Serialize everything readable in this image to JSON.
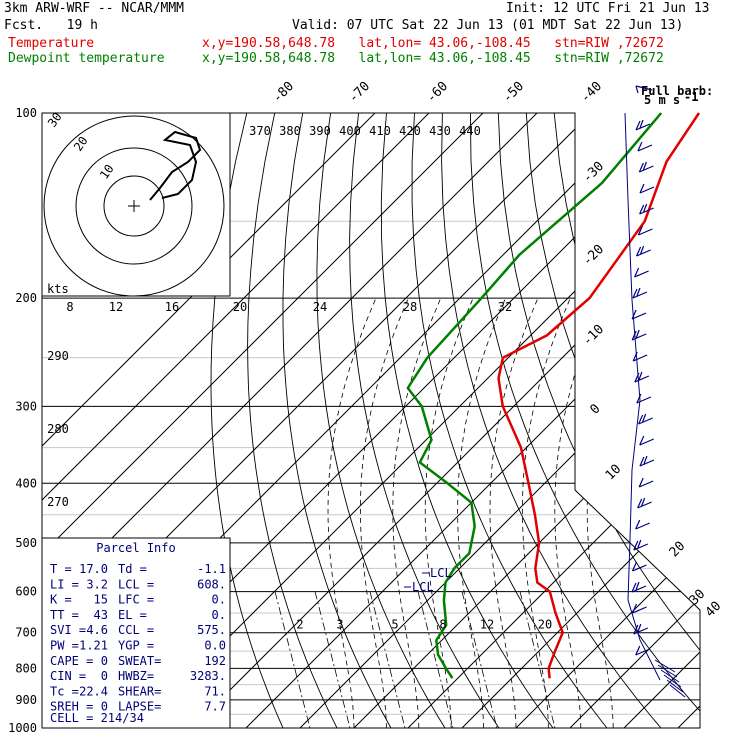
{
  "header": {
    "model": "3km ARW-WRF -- NCAR/MMM",
    "init": "Init: 12 UTC Fri 21 Jun 13",
    "fcst": "Fcst.   19 h",
    "valid": "Valid: 07 UTC Sat 22 Jun 13 (01 MDT Sat 22 Jun 13)",
    "temp_label": "Temperature",
    "dewp_label": "Dewpoint temperature",
    "temp_loc": "x,y=190.58,648.78   lat,lon= 43.06,-108.45   stn=RIW ,72672",
    "dewp_loc": "x,y=190.58,648.78   lat,lon= 43.06,-108.45   stn=RIW ,72672",
    "full_barb": "Full barb:",
    "full_barb_units": "5 m s",
    "full_barb_exp": "-1"
  },
  "colors": {
    "temperature": "#e00000",
    "dewpoint": "#008000",
    "info": "#00007a",
    "barbs": "#000080"
  },
  "chart_data": {
    "type": "skew-t",
    "pressure_levels": [
      100,
      200,
      300,
      400,
      500,
      600,
      700,
      800,
      900,
      1000
    ],
    "pressure_labels": [
      "100",
      "200",
      "300",
      "400",
      "500",
      "600",
      "700",
      "800",
      "900",
      "1000"
    ],
    "skewed_isotherms": [
      "-80",
      "-70",
      "-60",
      "-50",
      "-40",
      "-30",
      "-20",
      "-10",
      "0",
      "10",
      "20",
      "30",
      "40"
    ],
    "theta_labels": [
      "370",
      "380",
      "390",
      "400",
      "410",
      "420",
      "430",
      "440"
    ],
    "lower_theta_labels": [
      "290",
      "280",
      "270"
    ],
    "mixing_ratio_labels": [
      "2",
      "3",
      "5",
      "8",
      "12",
      "20"
    ],
    "hodograph_labels": {
      "units": "kts",
      "speeds": [
        "8",
        "12",
        "16",
        "20",
        "24",
        "28",
        "32"
      ],
      "rings": [
        "30",
        "20",
        "10"
      ]
    },
    "temperature": {
      "name": "Temperature",
      "p": [
        100,
        120,
        150,
        200,
        230,
        250,
        270,
        300,
        350,
        400,
        450,
        500,
        550,
        580,
        600,
        650,
        700,
        750,
        800,
        830
      ],
      "t": [
        -60,
        -57,
        -50,
        -46,
        -47,
        -51,
        -48,
        -42,
        -31,
        -23,
        -16,
        -10,
        -6,
        -3,
        1,
        6,
        11,
        13,
        15,
        17
      ]
    },
    "dewpoint": {
      "name": "Dewpoint temperature",
      "p": [
        100,
        130,
        170,
        200,
        250,
        280,
        300,
        340,
        370,
        400,
        430,
        470,
        520,
        550,
        580,
        620,
        680,
        720,
        760,
        800,
        830
      ],
      "t": [
        -67,
        -65,
        -67,
        -66,
        -65,
        -63,
        -57,
        -49,
        -47,
        -38,
        -30,
        -25,
        -21,
        -21,
        -20,
        -17,
        -12,
        -11,
        -8,
        -4,
        -1
      ]
    },
    "lcl_labels": [
      "LCL",
      "LCL"
    ],
    "parcel_info": {
      "title": "Parcel Info",
      "rows": [
        [
          "T  =",
          "17.0",
          "Td =",
          "-1.1"
        ],
        [
          "LI =",
          "3.2",
          "LCL =",
          "608."
        ],
        [
          "K  =",
          "15",
          "LFC =",
          "0."
        ],
        [
          "TT =",
          "43",
          "EL  =",
          "0."
        ],
        [
          "SVI =",
          "4.6",
          "CCL =",
          "575."
        ],
        [
          "PW =",
          "1.21",
          "YGP =",
          "0.0"
        ],
        [
          "CAPE =",
          "0",
          "SWEAT=",
          "192"
        ],
        [
          "CIN =",
          "0",
          "HWBZ=",
          "3283."
        ],
        [
          "Tc =",
          "22.4",
          "SHEAR=",
          "71."
        ],
        [
          "SREH =",
          "0",
          "LAPSE=",
          "7.7"
        ]
      ],
      "cell": "CELL = 214/34"
    }
  }
}
